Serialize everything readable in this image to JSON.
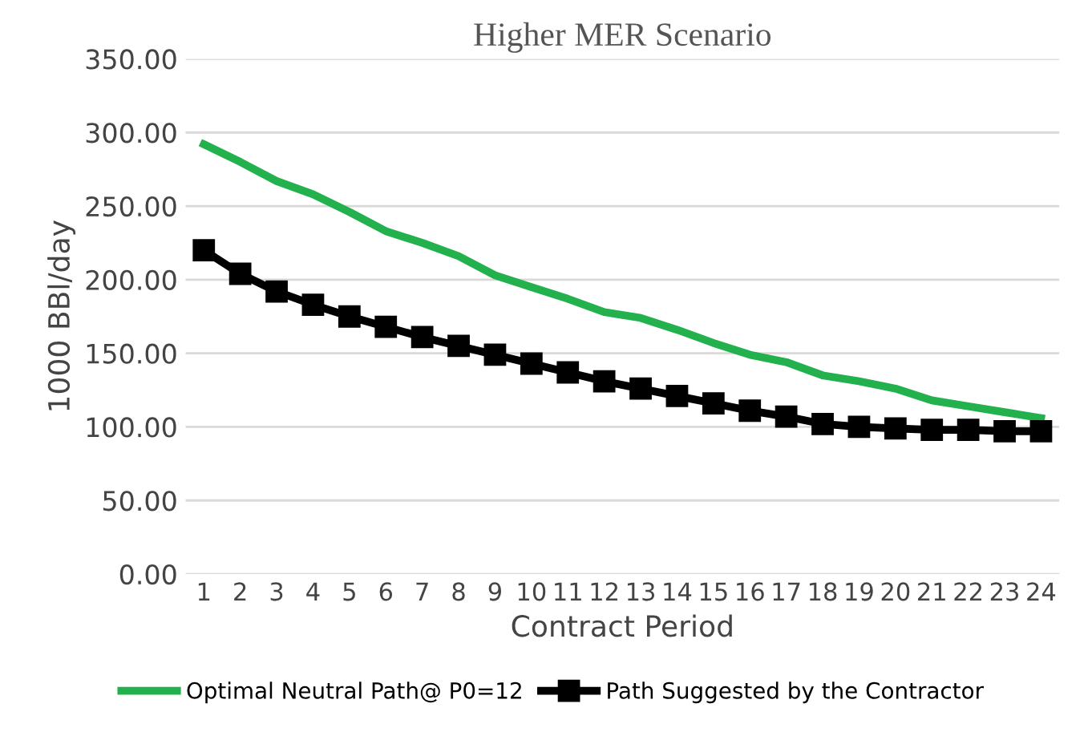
{
  "chart_data": {
    "type": "line",
    "title": "Higher MER Scenario",
    "xlabel": "Contract Period",
    "ylabel": "1000 BBl/day",
    "categories": [
      "1",
      "2",
      "3",
      "4",
      "5",
      "6",
      "7",
      "8",
      "9",
      "10",
      "11",
      "12",
      "13",
      "14",
      "15",
      "16",
      "17",
      "18",
      "19",
      "20",
      "21",
      "22",
      "23",
      "24"
    ],
    "series": [
      {
        "name": "Optimal Neutral Path@ P0=12",
        "color": "#22b14c",
        "marker": "none",
        "values": [
          292,
          280,
          267,
          258,
          246,
          233,
          225,
          216,
          203,
          195,
          187,
          178,
          174,
          166,
          157,
          149,
          144,
          135,
          131,
          126,
          118,
          114,
          110,
          106
        ]
      },
      {
        "name": "Path Suggested by the Contractor",
        "color": "#000000",
        "marker": "square",
        "values": [
          220,
          204,
          192,
          183,
          175,
          168,
          161,
          155,
          149,
          143,
          137,
          131,
          126,
          121,
          116,
          111,
          107,
          102,
          100,
          99,
          98,
          98,
          97,
          97
        ]
      }
    ],
    "ylim": [
      0,
      350
    ],
    "yticks": [
      {
        "value": 0,
        "label": "0.00"
      },
      {
        "value": 50,
        "label": "50.00"
      },
      {
        "value": 100,
        "label": "100.00"
      },
      {
        "value": 150,
        "label": "150.00"
      },
      {
        "value": 200,
        "label": "200.00"
      },
      {
        "value": 250,
        "label": "250.00"
      },
      {
        "value": 300,
        "label": "300.00"
      },
      {
        "value": 350,
        "label": "350.00"
      }
    ],
    "grid": "y",
    "legend": "bottom"
  }
}
